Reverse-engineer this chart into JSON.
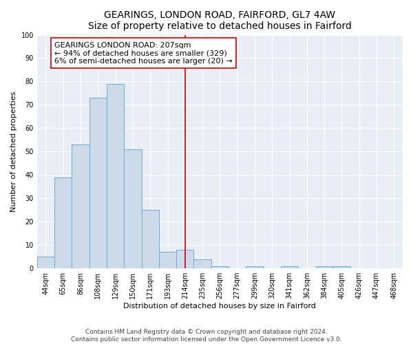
{
  "title": "GEARINGS, LONDON ROAD, FAIRFORD, GL7 4AW",
  "subtitle": "Size of property relative to detached houses in Fairford",
  "xlabel": "Distribution of detached houses by size in Fairford",
  "ylabel": "Number of detached properties",
  "bar_labels": [
    "44sqm",
    "65sqm",
    "86sqm",
    "108sqm",
    "129sqm",
    "150sqm",
    "171sqm",
    "193sqm",
    "214sqm",
    "235sqm",
    "256sqm",
    "277sqm",
    "299sqm",
    "320sqm",
    "341sqm",
    "362sqm",
    "384sqm",
    "405sqm",
    "426sqm",
    "447sqm",
    "468sqm"
  ],
  "bar_values": [
    5,
    39,
    53,
    73,
    79,
    51,
    25,
    7,
    8,
    4,
    1,
    0,
    1,
    0,
    1,
    0,
    1,
    1,
    0,
    0,
    0
  ],
  "bar_color": "#ccd9e8",
  "bar_edge_color": "#6aaad4",
  "vline_x": 8,
  "vline_color": "#cc0000",
  "annotation_text": "GEARINGS LONDON ROAD: 207sqm\n← 94% of detached houses are smaller (329)\n6% of semi-detached houses are larger (20) →",
  "annotation_box_color": "#ffffff",
  "annotation_box_edge_color": "#cc0000",
  "plot_bg_color": "#e8eef4",
  "ylim": [
    0,
    100
  ],
  "yticks": [
    0,
    10,
    20,
    30,
    40,
    50,
    60,
    70,
    80,
    90,
    100
  ],
  "footer1": "Contains HM Land Registry data © Crown copyright and database right 2024.",
  "footer2": "Contains public sector information licensed under the Open Government Licence v3.0.",
  "title_fontsize": 10,
  "subtitle_fontsize": 9,
  "axis_label_fontsize": 8,
  "tick_fontsize": 7,
  "annotation_fontsize": 8,
  "footer_fontsize": 6.5
}
